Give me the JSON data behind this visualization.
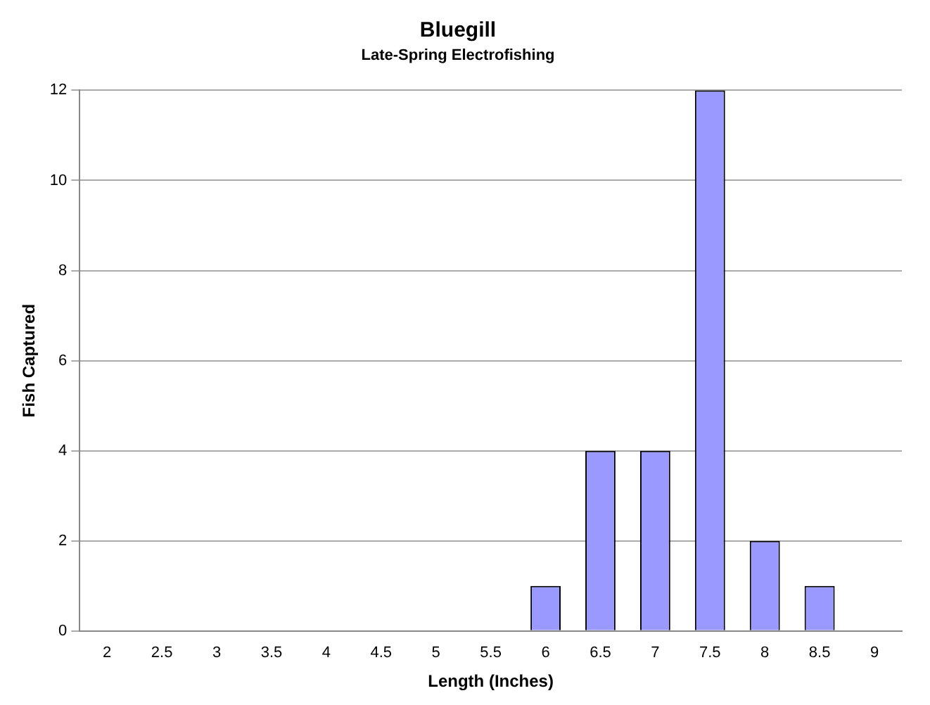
{
  "chart_data": {
    "type": "bar",
    "title": "Bluegill",
    "subtitle": "Late-Spring Electrofishing",
    "xlabel": "Length (Inches)",
    "ylabel": "Fish Captured",
    "categories": [
      "2",
      "2.5",
      "3",
      "3.5",
      "4",
      "4.5",
      "5",
      "5.5",
      "6",
      "6.5",
      "7",
      "7.5",
      "8",
      "8.5",
      "9"
    ],
    "values": [
      0,
      0,
      0,
      0,
      0,
      0,
      0,
      0,
      1,
      4,
      4,
      12,
      2,
      1,
      0
    ],
    "color": "#9999ff",
    "ylim": [
      0,
      12
    ],
    "yticks": [
      0,
      2,
      4,
      6,
      8,
      10,
      12
    ],
    "grid": "y"
  }
}
